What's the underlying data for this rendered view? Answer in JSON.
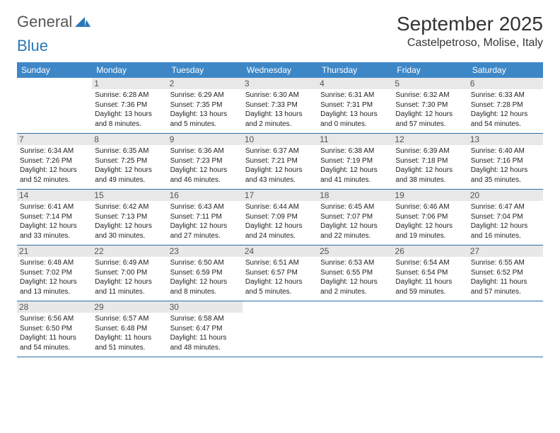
{
  "logo": {
    "part1": "General",
    "part2": "Blue"
  },
  "title": "September 2025",
  "location": "Castelpetroso, Molise, Italy",
  "dayHeaders": [
    "Sunday",
    "Monday",
    "Tuesday",
    "Wednesday",
    "Thursday",
    "Friday",
    "Saturday"
  ],
  "colors": {
    "header_bg": "#3d87c7",
    "header_text": "#ffffff",
    "daynum_bg": "#e8e8e8",
    "rule": "#2a6ea8",
    "logo_gray": "#555555",
    "logo_blue": "#2a77b8"
  },
  "typography": {
    "title_fontsize": 28,
    "location_fontsize": 16,
    "dayhead_fontsize": 12,
    "daynum_fontsize": 12,
    "info_fontsize": 10
  },
  "weeks": [
    [
      {
        "num": "",
        "sunrise": "",
        "sunset": "",
        "daylight": ""
      },
      {
        "num": "1",
        "sunrise": "Sunrise: 6:28 AM",
        "sunset": "Sunset: 7:36 PM",
        "daylight": "Daylight: 13 hours and 8 minutes."
      },
      {
        "num": "2",
        "sunrise": "Sunrise: 6:29 AM",
        "sunset": "Sunset: 7:35 PM",
        "daylight": "Daylight: 13 hours and 5 minutes."
      },
      {
        "num": "3",
        "sunrise": "Sunrise: 6:30 AM",
        "sunset": "Sunset: 7:33 PM",
        "daylight": "Daylight: 13 hours and 2 minutes."
      },
      {
        "num": "4",
        "sunrise": "Sunrise: 6:31 AM",
        "sunset": "Sunset: 7:31 PM",
        "daylight": "Daylight: 13 hours and 0 minutes."
      },
      {
        "num": "5",
        "sunrise": "Sunrise: 6:32 AM",
        "sunset": "Sunset: 7:30 PM",
        "daylight": "Daylight: 12 hours and 57 minutes."
      },
      {
        "num": "6",
        "sunrise": "Sunrise: 6:33 AM",
        "sunset": "Sunset: 7:28 PM",
        "daylight": "Daylight: 12 hours and 54 minutes."
      }
    ],
    [
      {
        "num": "7",
        "sunrise": "Sunrise: 6:34 AM",
        "sunset": "Sunset: 7:26 PM",
        "daylight": "Daylight: 12 hours and 52 minutes."
      },
      {
        "num": "8",
        "sunrise": "Sunrise: 6:35 AM",
        "sunset": "Sunset: 7:25 PM",
        "daylight": "Daylight: 12 hours and 49 minutes."
      },
      {
        "num": "9",
        "sunrise": "Sunrise: 6:36 AM",
        "sunset": "Sunset: 7:23 PM",
        "daylight": "Daylight: 12 hours and 46 minutes."
      },
      {
        "num": "10",
        "sunrise": "Sunrise: 6:37 AM",
        "sunset": "Sunset: 7:21 PM",
        "daylight": "Daylight: 12 hours and 43 minutes."
      },
      {
        "num": "11",
        "sunrise": "Sunrise: 6:38 AM",
        "sunset": "Sunset: 7:19 PM",
        "daylight": "Daylight: 12 hours and 41 minutes."
      },
      {
        "num": "12",
        "sunrise": "Sunrise: 6:39 AM",
        "sunset": "Sunset: 7:18 PM",
        "daylight": "Daylight: 12 hours and 38 minutes."
      },
      {
        "num": "13",
        "sunrise": "Sunrise: 6:40 AM",
        "sunset": "Sunset: 7:16 PM",
        "daylight": "Daylight: 12 hours and 35 minutes."
      }
    ],
    [
      {
        "num": "14",
        "sunrise": "Sunrise: 6:41 AM",
        "sunset": "Sunset: 7:14 PM",
        "daylight": "Daylight: 12 hours and 33 minutes."
      },
      {
        "num": "15",
        "sunrise": "Sunrise: 6:42 AM",
        "sunset": "Sunset: 7:13 PM",
        "daylight": "Daylight: 12 hours and 30 minutes."
      },
      {
        "num": "16",
        "sunrise": "Sunrise: 6:43 AM",
        "sunset": "Sunset: 7:11 PM",
        "daylight": "Daylight: 12 hours and 27 minutes."
      },
      {
        "num": "17",
        "sunrise": "Sunrise: 6:44 AM",
        "sunset": "Sunset: 7:09 PM",
        "daylight": "Daylight: 12 hours and 24 minutes."
      },
      {
        "num": "18",
        "sunrise": "Sunrise: 6:45 AM",
        "sunset": "Sunset: 7:07 PM",
        "daylight": "Daylight: 12 hours and 22 minutes."
      },
      {
        "num": "19",
        "sunrise": "Sunrise: 6:46 AM",
        "sunset": "Sunset: 7:06 PM",
        "daylight": "Daylight: 12 hours and 19 minutes."
      },
      {
        "num": "20",
        "sunrise": "Sunrise: 6:47 AM",
        "sunset": "Sunset: 7:04 PM",
        "daylight": "Daylight: 12 hours and 16 minutes."
      }
    ],
    [
      {
        "num": "21",
        "sunrise": "Sunrise: 6:48 AM",
        "sunset": "Sunset: 7:02 PM",
        "daylight": "Daylight: 12 hours and 13 minutes."
      },
      {
        "num": "22",
        "sunrise": "Sunrise: 6:49 AM",
        "sunset": "Sunset: 7:00 PM",
        "daylight": "Daylight: 12 hours and 11 minutes."
      },
      {
        "num": "23",
        "sunrise": "Sunrise: 6:50 AM",
        "sunset": "Sunset: 6:59 PM",
        "daylight": "Daylight: 12 hours and 8 minutes."
      },
      {
        "num": "24",
        "sunrise": "Sunrise: 6:51 AM",
        "sunset": "Sunset: 6:57 PM",
        "daylight": "Daylight: 12 hours and 5 minutes."
      },
      {
        "num": "25",
        "sunrise": "Sunrise: 6:53 AM",
        "sunset": "Sunset: 6:55 PM",
        "daylight": "Daylight: 12 hours and 2 minutes."
      },
      {
        "num": "26",
        "sunrise": "Sunrise: 6:54 AM",
        "sunset": "Sunset: 6:54 PM",
        "daylight": "Daylight: 11 hours and 59 minutes."
      },
      {
        "num": "27",
        "sunrise": "Sunrise: 6:55 AM",
        "sunset": "Sunset: 6:52 PM",
        "daylight": "Daylight: 11 hours and 57 minutes."
      }
    ],
    [
      {
        "num": "28",
        "sunrise": "Sunrise: 6:56 AM",
        "sunset": "Sunset: 6:50 PM",
        "daylight": "Daylight: 11 hours and 54 minutes."
      },
      {
        "num": "29",
        "sunrise": "Sunrise: 6:57 AM",
        "sunset": "Sunset: 6:48 PM",
        "daylight": "Daylight: 11 hours and 51 minutes."
      },
      {
        "num": "30",
        "sunrise": "Sunrise: 6:58 AM",
        "sunset": "Sunset: 6:47 PM",
        "daylight": "Daylight: 11 hours and 48 minutes."
      },
      {
        "num": "",
        "sunrise": "",
        "sunset": "",
        "daylight": ""
      },
      {
        "num": "",
        "sunrise": "",
        "sunset": "",
        "daylight": ""
      },
      {
        "num": "",
        "sunrise": "",
        "sunset": "",
        "daylight": ""
      },
      {
        "num": "",
        "sunrise": "",
        "sunset": "",
        "daylight": ""
      }
    ]
  ]
}
